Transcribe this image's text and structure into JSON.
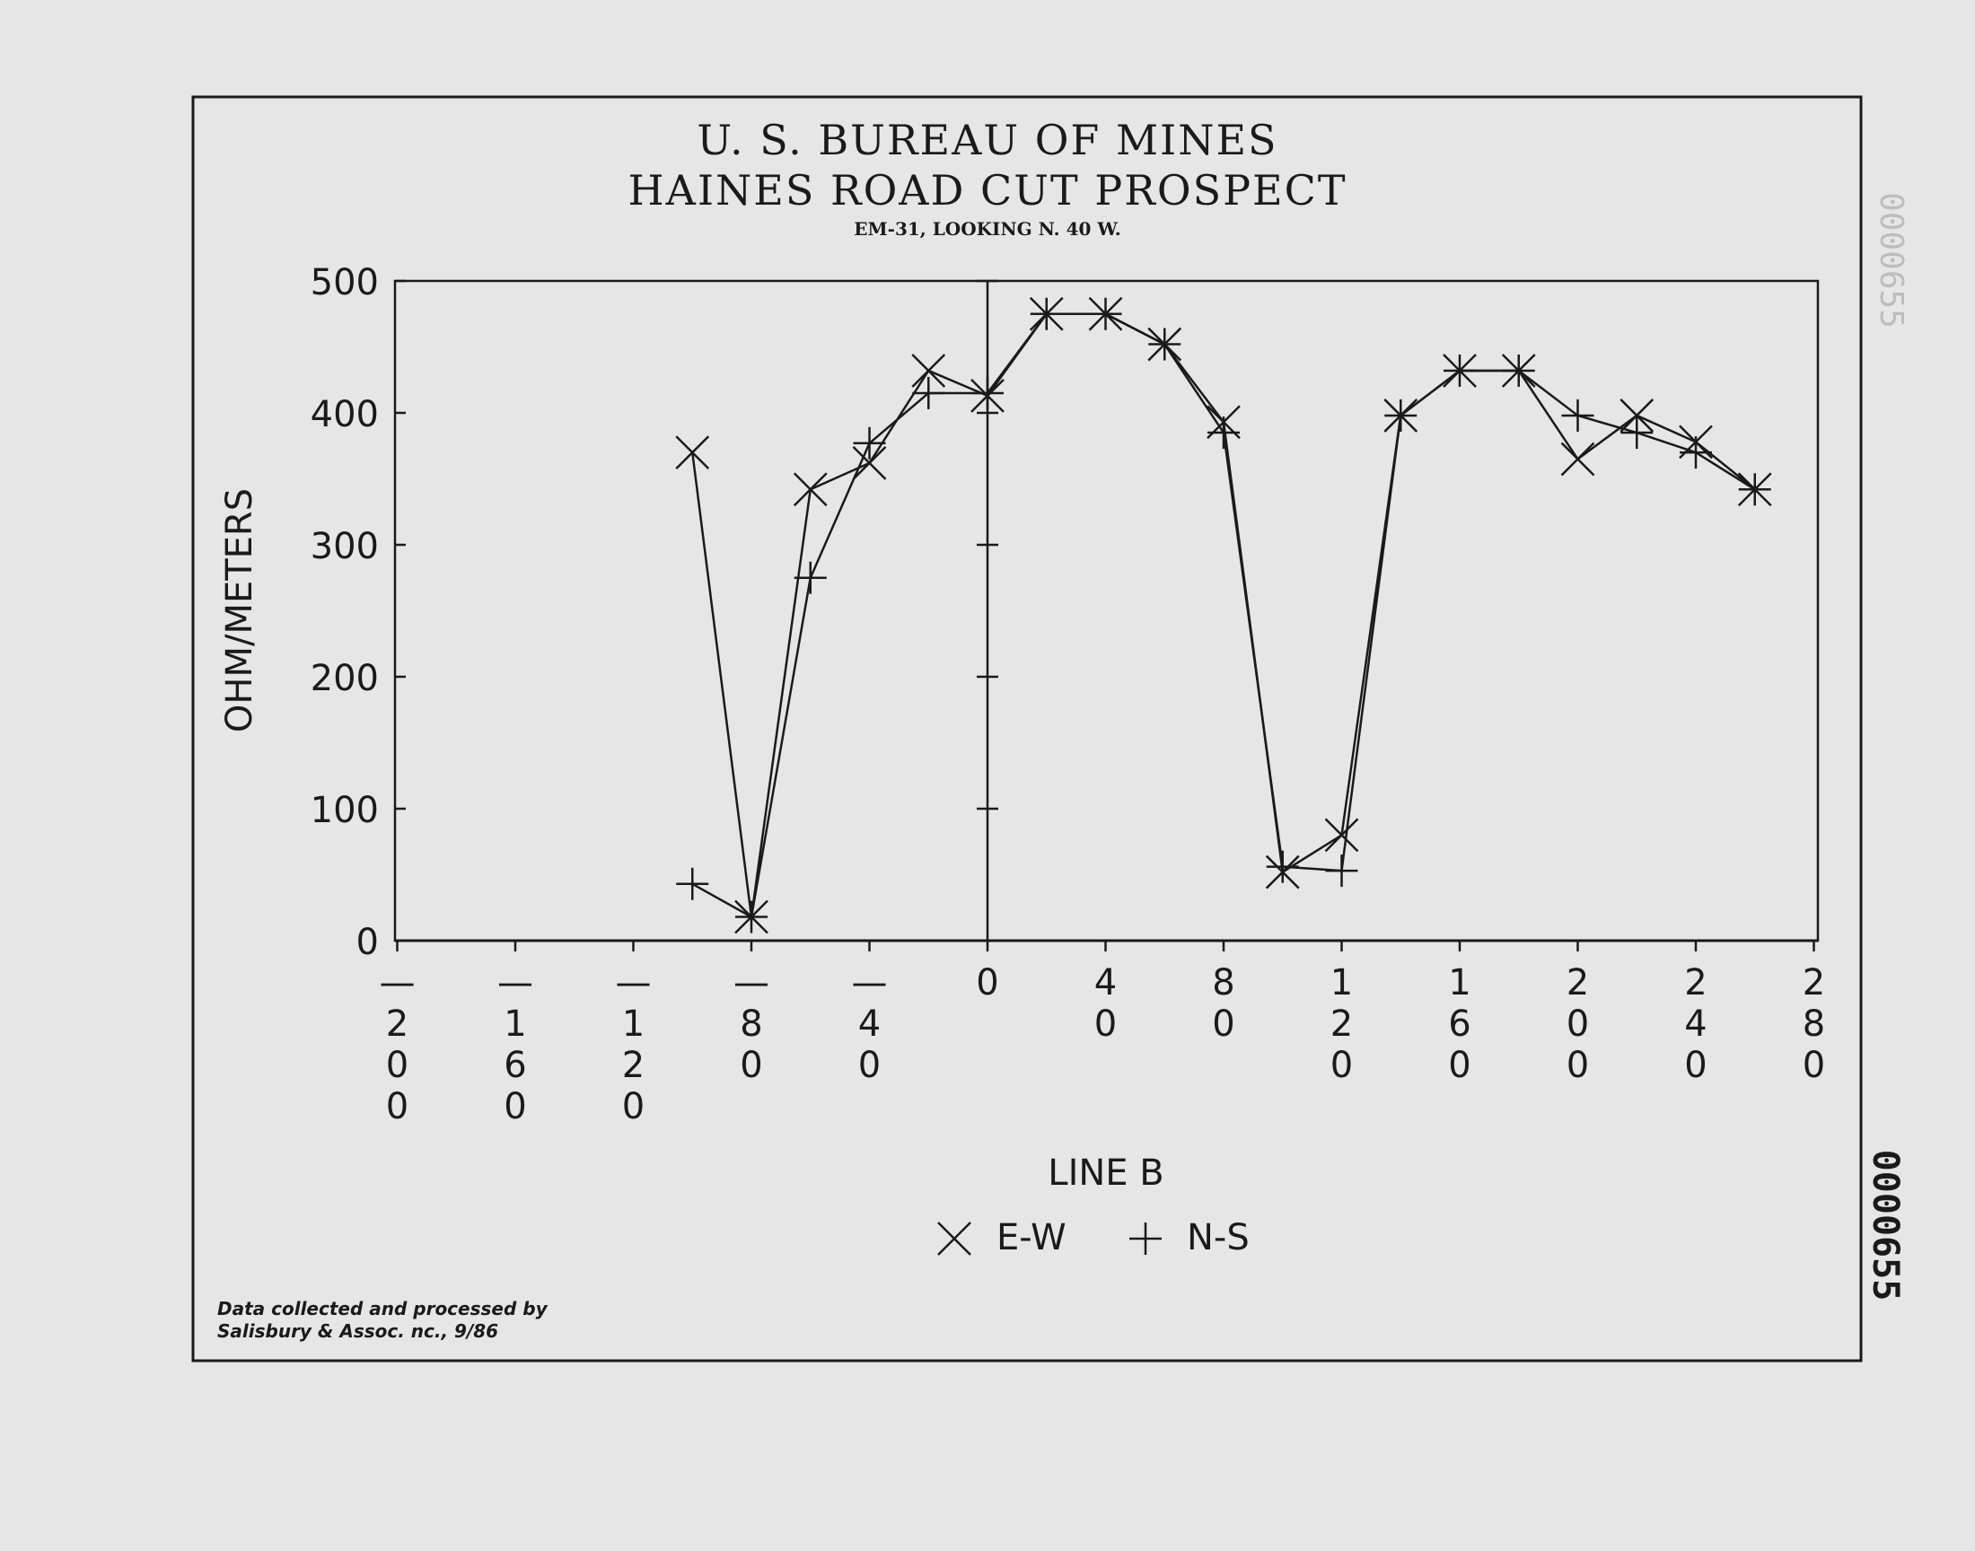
{
  "header": {
    "title_line1": "U. S. BUREAU OF MINES",
    "title_line2": "HAINES ROAD CUT PROSPECT",
    "subtitle": "EM-31, LOOKING N. 40 W."
  },
  "footer": {
    "credit_line1": "Data collected and processed by",
    "credit_line2": "Salisbury & Assoc. nc., 9/86"
  },
  "margin_stamps": {
    "top_right": "0000655",
    "bottom_right": "0000655"
  },
  "chart_data": {
    "type": "line",
    "title": "U. S. BUREAU OF MINES HAINES ROAD CUT PROSPECT",
    "subtitle": "EM-31, LOOKING N. 40 W.",
    "xlabel": "LINE B",
    "ylabel": "OHM/METERS",
    "xlim": [
      -200,
      280
    ],
    "ylim": [
      0,
      500
    ],
    "x_ticks": [
      -200,
      -160,
      -120,
      -80,
      -40,
      0,
      40,
      80,
      120,
      160,
      200,
      240,
      280
    ],
    "y_ticks": [
      0,
      100,
      200,
      300,
      400,
      500
    ],
    "x_tick_labels": [
      [
        "—",
        "2",
        "0",
        "0"
      ],
      [
        "—",
        "1",
        "6",
        "0"
      ],
      [
        "—",
        "1",
        "2",
        "0"
      ],
      [
        "—",
        "8",
        "0"
      ],
      [
        "—",
        "4",
        "0"
      ],
      [
        "0"
      ],
      [
        "4",
        "0"
      ],
      [
        "8",
        "0"
      ],
      [
        "1",
        "2",
        "0"
      ],
      [
        "1",
        "6",
        "0"
      ],
      [
        "2",
        "0",
        "0"
      ],
      [
        "2",
        "4",
        "0"
      ],
      [
        "2",
        "8",
        "0"
      ]
    ],
    "y_tick_labels": [
      "0",
      "100",
      "200",
      "300",
      "400",
      "500"
    ],
    "legend_placement": "bottom-center",
    "series": [
      {
        "name": "E-W",
        "marker": "x",
        "x": [
          -100,
          -80,
          -60,
          -40,
          -20,
          0,
          20,
          40,
          60,
          80,
          100,
          120,
          140,
          160,
          180,
          200,
          220,
          240,
          260
        ],
        "y": [
          370,
          18,
          342,
          362,
          432,
          413,
          475,
          475,
          452,
          393,
          52,
          80,
          398,
          432,
          432,
          365,
          398,
          378,
          342
        ]
      },
      {
        "name": "N-S",
        "marker": "+",
        "x": [
          -100,
          -80,
          -60,
          -40,
          -20,
          0,
          20,
          40,
          60,
          80,
          100,
          120,
          140,
          160,
          180,
          200,
          220,
          240,
          260
        ],
        "y": [
          43,
          18,
          275,
          377,
          415,
          415,
          475,
          475,
          452,
          385,
          56,
          53,
          398,
          432,
          432,
          398,
          385,
          370,
          342
        ]
      }
    ]
  }
}
